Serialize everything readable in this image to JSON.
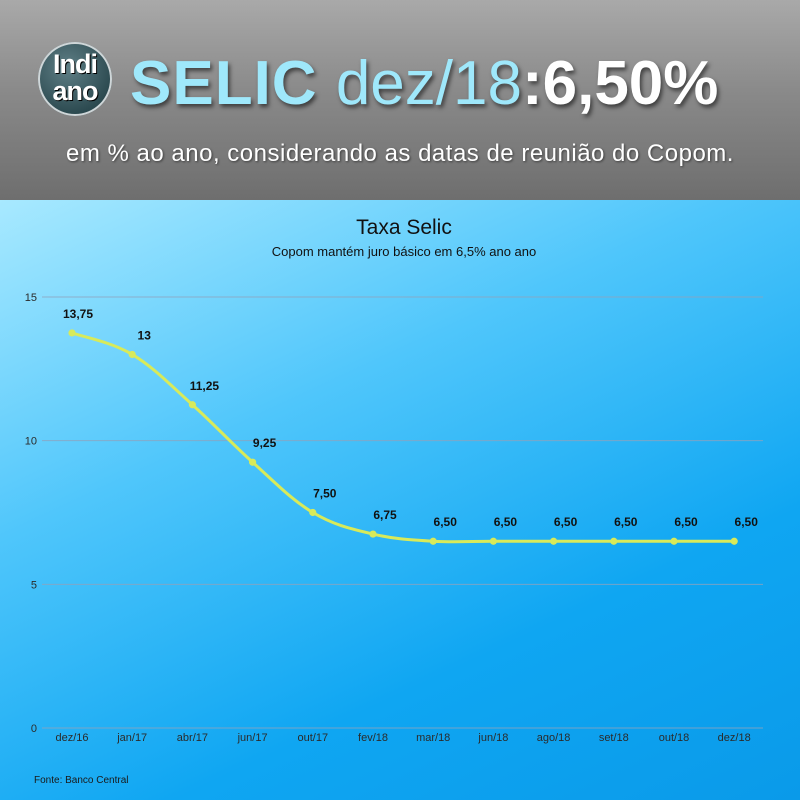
{
  "header": {
    "logo_line1": "Indi",
    "logo_line2": "ano",
    "headline_prefix": "SELIC ",
    "headline_period": "dez/18",
    "headline_rate": ":6,50%",
    "subtitle": "em % ao ano, considerando as datas de reunião do Copom."
  },
  "colors": {
    "line": "#d8ea5a",
    "gridline": "#8ea3bd",
    "headline_cyan": "#9fe8fb"
  },
  "chart_data": {
    "type": "line",
    "title": "Taxa Selic",
    "subtitle": "Copom mantém juro básico em 6,5% ano ano",
    "categories": [
      "dez/16",
      "jan/17",
      "abr/17",
      "jun/17",
      "out/17",
      "fev/18",
      "mar/18",
      "jun/18",
      "ago/18",
      "set/18",
      "out/18",
      "dez/18"
    ],
    "series": [
      {
        "values": [
          13.75,
          13,
          11.25,
          9.25,
          7.5,
          6.75,
          6.5,
          6.5,
          6.5,
          6.5,
          6.5,
          6.5
        ],
        "labels": [
          "13,75",
          "13",
          "11,25",
          "9,25",
          "7,50",
          "6,75",
          "6,50",
          "6,50",
          "6,50",
          "6,50",
          "6,50",
          "6,50"
        ]
      }
    ],
    "yticks": [
      0,
      5,
      10,
      15
    ],
    "ylim": [
      0,
      15
    ],
    "grid": true,
    "legend": "none",
    "source": "Fonte: Banco Central"
  }
}
